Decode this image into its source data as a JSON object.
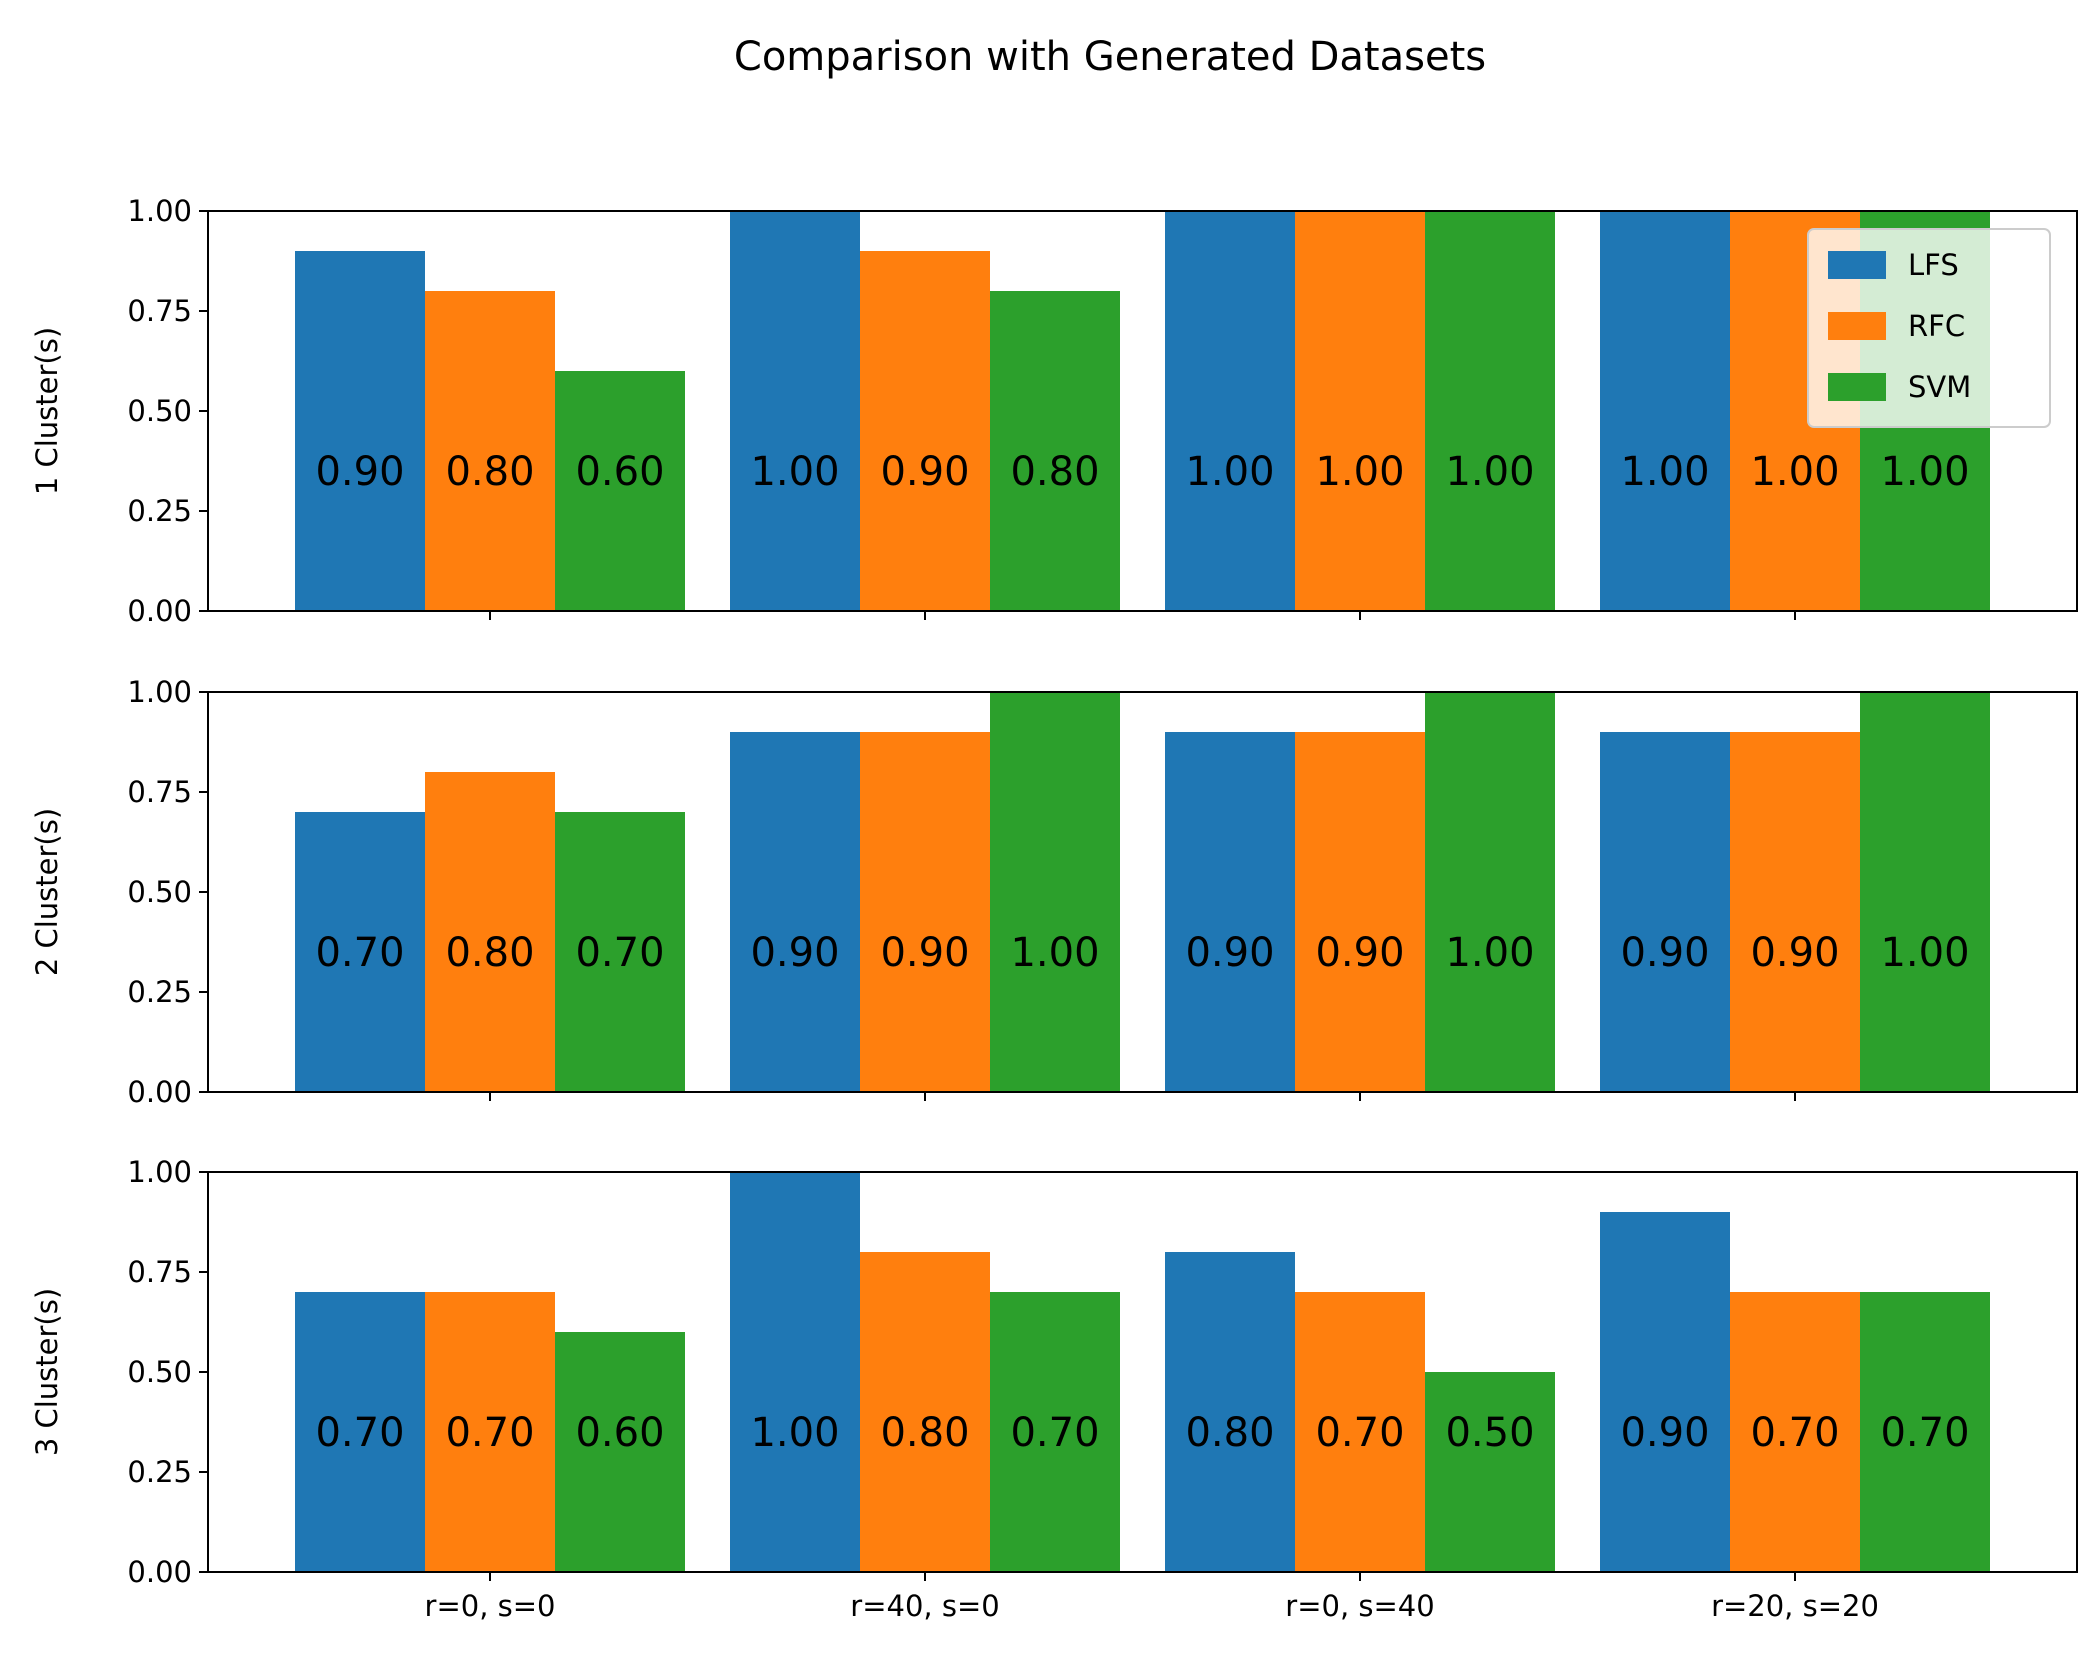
{
  "chart_data": {
    "type": "bar",
    "title": "Comparison with Generated Datasets",
    "categories": [
      "r=0, s=0",
      "r=40, s=0",
      "r=0, s=40",
      "r=20, s=20"
    ],
    "series_names": [
      "LFS",
      "RFC",
      "SVM"
    ],
    "colors": {
      "LFS": "#1f77b4",
      "RFC": "#ff7f0e",
      "SVM": "#2ca02c"
    },
    "ylim": [
      0,
      1
    ],
    "yticks": [
      "0.00",
      "0.25",
      "0.50",
      "0.75",
      "1.00"
    ],
    "grid": false,
    "legend_location": "top-right of first panel",
    "panels": [
      {
        "ylabel": "1 Cluster(s)",
        "series": [
          {
            "name": "LFS",
            "values": [
              0.9,
              1.0,
              1.0,
              1.0
            ],
            "labels": [
              "0.90",
              "1.00",
              "1.00",
              "1.00"
            ]
          },
          {
            "name": "RFC",
            "values": [
              0.8,
              0.9,
              1.0,
              1.0
            ],
            "labels": [
              "0.80",
              "0.90",
              "1.00",
              "1.00"
            ]
          },
          {
            "name": "SVM",
            "values": [
              0.6,
              0.8,
              1.0,
              1.0
            ],
            "labels": [
              "0.60",
              "0.80",
              "1.00",
              "1.00"
            ]
          }
        ]
      },
      {
        "ylabel": "2 Cluster(s)",
        "series": [
          {
            "name": "LFS",
            "values": [
              0.7,
              0.9,
              0.9,
              0.9
            ],
            "labels": [
              "0.70",
              "0.90",
              "0.90",
              "0.90"
            ]
          },
          {
            "name": "RFC",
            "values": [
              0.8,
              0.9,
              0.9,
              0.9
            ],
            "labels": [
              "0.80",
              "0.90",
              "0.90",
              "0.90"
            ]
          },
          {
            "name": "SVM",
            "values": [
              0.7,
              1.0,
              1.0,
              1.0
            ],
            "labels": [
              "0.70",
              "1.00",
              "1.00",
              "1.00"
            ]
          }
        ]
      },
      {
        "ylabel": "3 Cluster(s)",
        "series": [
          {
            "name": "LFS",
            "values": [
              0.7,
              1.0,
              0.8,
              0.9
            ],
            "labels": [
              "0.70",
              "1.00",
              "0.80",
              "0.90"
            ]
          },
          {
            "name": "RFC",
            "values": [
              0.7,
              0.8,
              0.7,
              0.7
            ],
            "labels": [
              "0.70",
              "0.80",
              "0.70",
              "0.70"
            ]
          },
          {
            "name": "SVM",
            "values": [
              0.6,
              0.7,
              0.5,
              0.7
            ],
            "labels": [
              "0.60",
              "0.70",
              "0.50",
              "0.70"
            ]
          }
        ]
      }
    ]
  }
}
